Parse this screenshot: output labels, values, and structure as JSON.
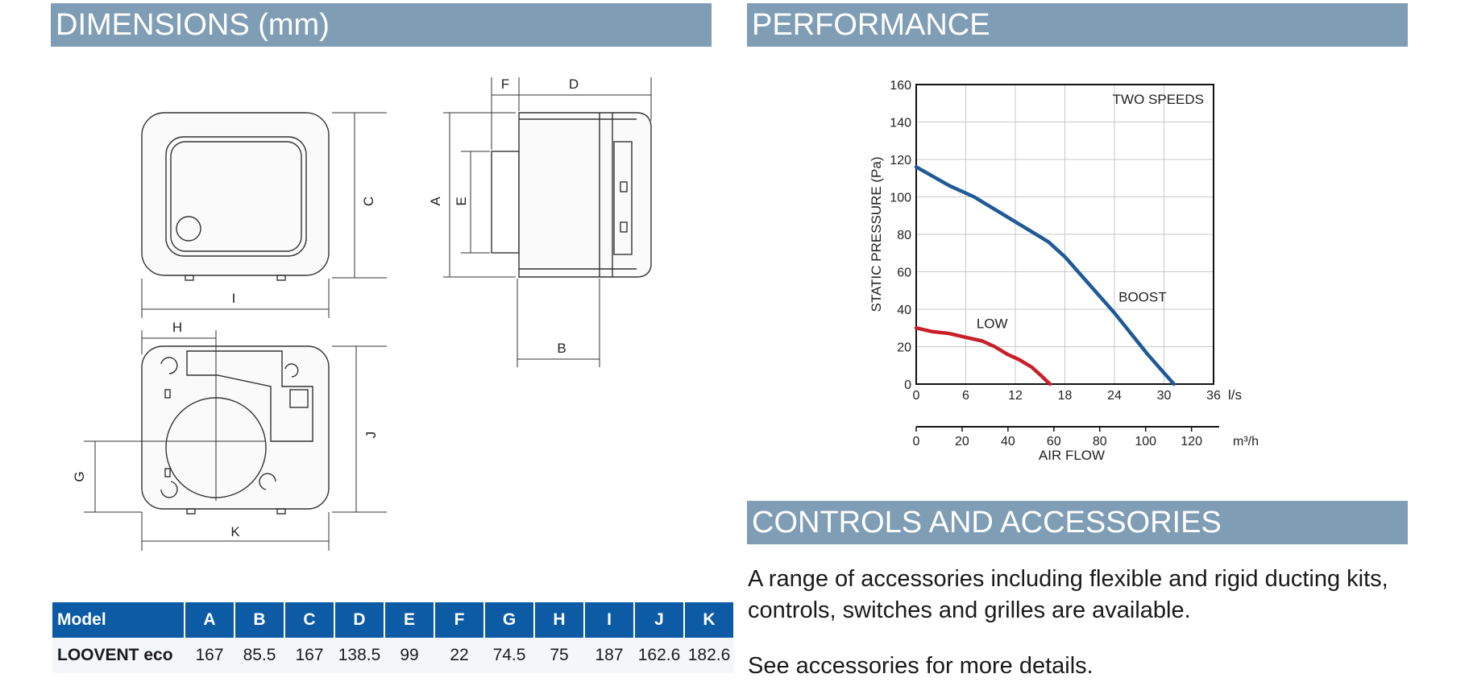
{
  "sections": {
    "dimensions_title": "DIMENSIONS (mm)",
    "performance_title": "PERFORMANCE",
    "controls_title": "CONTROLS AND ACCESSORIES"
  },
  "drawing_labels": {
    "a": "A",
    "b": "B",
    "c": "C",
    "d": "D",
    "e": "E",
    "f": "F",
    "g": "G",
    "h": "H",
    "i": "I",
    "j": "J",
    "k": "K"
  },
  "table": {
    "headers": [
      "Model",
      "A",
      "B",
      "C",
      "D",
      "E",
      "F",
      "G",
      "H",
      "I",
      "J",
      "K"
    ],
    "row": [
      "LOOVENT eco",
      "167",
      "85.5",
      "167",
      "138.5",
      "99",
      "22",
      "74.5",
      "75",
      "187",
      "162.6",
      "182.6"
    ]
  },
  "chart_data": {
    "type": "line",
    "title": "",
    "annotation": "TWO SPEEDS",
    "xlabel": "AIR FLOW",
    "ylabel": "STATIC PRESSURE (Pa)",
    "x_unit": "l/s",
    "x2_unit": "m³/h",
    "xlim": [
      0,
      36
    ],
    "ylim": [
      0,
      160
    ],
    "x_ticks": [
      "0",
      "6",
      "12",
      "18",
      "24",
      "30",
      "36"
    ],
    "y_ticks": [
      "0",
      "20",
      "40",
      "60",
      "80",
      "100",
      "120",
      "140",
      "160"
    ],
    "x2_ticks": [
      "0",
      "20",
      "40",
      "60",
      "80",
      "100",
      "120"
    ],
    "grid": true,
    "series": [
      {
        "name": "BOOST",
        "color": "#1f5a96",
        "x": [
          0,
          4,
          7,
          10,
          13,
          16,
          18,
          20,
          22,
          24,
          26,
          28,
          30,
          31.2
        ],
        "y": [
          116,
          106,
          100,
          92,
          84,
          76,
          68,
          58,
          48,
          38,
          27,
          16,
          6,
          0
        ]
      },
      {
        "name": "LOW",
        "color": "#c8202a",
        "x": [
          0,
          2,
          4,
          6,
          8,
          9.5,
          11,
          12.5,
          14,
          15,
          16.2
        ],
        "y": [
          30,
          28,
          27,
          25,
          23,
          20,
          16,
          13,
          9,
          5,
          0
        ]
      }
    ]
  },
  "accessories": {
    "text": "A range of accessories including flexible and rigid ducting kits, controls, switches and grilles are available.",
    "more": "See accessories for more details."
  }
}
